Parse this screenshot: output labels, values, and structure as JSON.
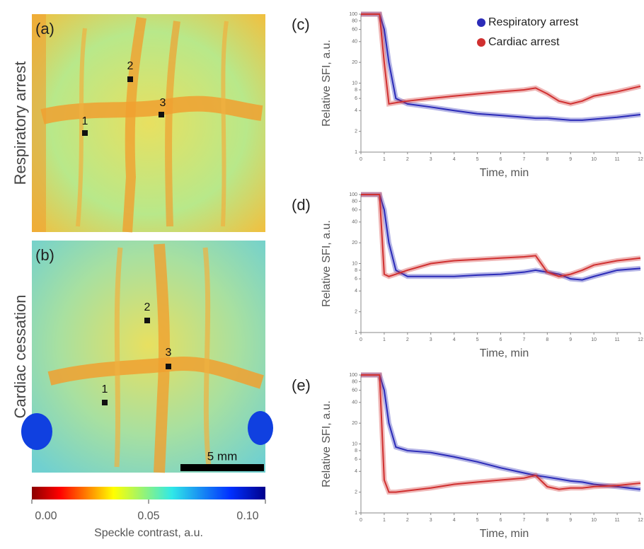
{
  "panels": [
    {
      "label": "(a)",
      "title": "Respiratory arrest",
      "points": [
        "1",
        "2",
        "3"
      ]
    },
    {
      "label": "(b)",
      "title": "Cardiac cessation",
      "points": [
        "1",
        "2",
        "3"
      ]
    }
  ],
  "scale_bar": "5 mm",
  "colorbar": {
    "label": "Speckle contrast, a.u.",
    "lim": [
      0,
      0.1
    ],
    "ticks": [
      {
        "value": 0,
        "label": "0.00"
      },
      {
        "value": 0.05,
        "label": "0.05"
      },
      {
        "value": 0.1,
        "label": "0.10"
      }
    ]
  },
  "chart_data": [
    {
      "type": "line",
      "panel": "(c)",
      "ylabel": "Relative SFI, a.u.",
      "xlabel": "Time, min",
      "log_y": true,
      "legend": "upper right",
      "x": [
        0,
        0.5,
        0.8,
        1,
        1.2,
        1.5,
        2,
        3,
        4,
        5,
        6,
        7,
        7.5,
        8,
        8.5,
        9,
        9.5,
        10,
        11,
        12
      ],
      "xlim": [
        0,
        12
      ],
      "xticks": [
        0,
        1,
        2,
        3,
        4,
        5,
        6,
        7,
        8,
        9,
        10,
        11,
        12
      ],
      "ylim": [
        1,
        100
      ],
      "yticks": [
        1,
        2,
        4,
        6,
        8,
        10,
        20,
        40,
        60,
        80,
        100
      ],
      "series": [
        {
          "name": "Respiratory arrest",
          "color": "#2b2bb8",
          "values": [
            100,
            100,
            100,
            60,
            20,
            6,
            5,
            4.5,
            4,
            3.6,
            3.4,
            3.2,
            3.1,
            3.1,
            3,
            2.9,
            2.9,
            3,
            3.2,
            3.5
          ]
        },
        {
          "name": "Cardiac arrest",
          "color": "#d03030",
          "values": [
            100,
            100,
            100,
            20,
            5,
            5.2,
            5.5,
            6,
            6.5,
            7,
            7.5,
            8,
            8.5,
            7,
            5.5,
            5,
            5.5,
            6.5,
            7.5,
            9
          ]
        }
      ]
    },
    {
      "type": "line",
      "panel": "(d)",
      "ylabel": "Relative SFI, a.u.",
      "xlabel": "Time, min",
      "log_y": true,
      "x": [
        0,
        0.5,
        0.8,
        1,
        1.2,
        1.5,
        2,
        3,
        4,
        5,
        6,
        7,
        7.5,
        8,
        8.5,
        9,
        9.5,
        10,
        11,
        12
      ],
      "xlim": [
        0,
        12
      ],
      "xticks": [
        0,
        1,
        2,
        3,
        4,
        5,
        6,
        7,
        8,
        9,
        10,
        11,
        12
      ],
      "ylim": [
        1,
        100
      ],
      "yticks": [
        1,
        2,
        4,
        6,
        8,
        10,
        20,
        40,
        60,
        80,
        100
      ],
      "series": [
        {
          "color": "#2b2bb8",
          "values": [
            100,
            100,
            100,
            60,
            20,
            8,
            6.5,
            6.5,
            6.5,
            6.8,
            7,
            7.5,
            8,
            7.5,
            7,
            6,
            5.8,
            6.5,
            8,
            8.5
          ]
        },
        {
          "color": "#d03030",
          "values": [
            100,
            100,
            100,
            7,
            6.5,
            7,
            8,
            10,
            11,
            11.5,
            12,
            12.5,
            13,
            7.5,
            6.5,
            7,
            8,
            9.5,
            11,
            12
          ]
        }
      ]
    },
    {
      "type": "line",
      "panel": "(e)",
      "ylabel": "Relative SFI, a.u.",
      "xlabel": "Time, min",
      "log_y": true,
      "x": [
        0,
        0.5,
        0.8,
        1,
        1.2,
        1.5,
        2,
        3,
        4,
        5,
        6,
        7,
        7.5,
        8,
        8.5,
        9,
        9.5,
        10,
        11,
        12
      ],
      "xlim": [
        0,
        12
      ],
      "xticks": [
        0,
        1,
        2,
        3,
        4,
        5,
        6,
        7,
        8,
        9,
        10,
        11,
        12
      ],
      "ylim": [
        1,
        100
      ],
      "yticks": [
        1,
        2,
        4,
        6,
        8,
        10,
        20,
        40,
        60,
        80,
        100
      ],
      "series": [
        {
          "color": "#2b2bb8",
          "values": [
            100,
            100,
            100,
            60,
            20,
            9,
            8,
            7.5,
            6.5,
            5.5,
            4.5,
            3.8,
            3.5,
            3.3,
            3.1,
            2.9,
            2.8,
            2.6,
            2.4,
            2.2
          ]
        },
        {
          "color": "#d03030",
          "values": [
            100,
            100,
            100,
            3,
            2,
            2,
            2.1,
            2.3,
            2.6,
            2.8,
            3,
            3.2,
            3.5,
            2.4,
            2.2,
            2.3,
            2.3,
            2.4,
            2.5,
            2.7
          ]
        }
      ]
    }
  ]
}
